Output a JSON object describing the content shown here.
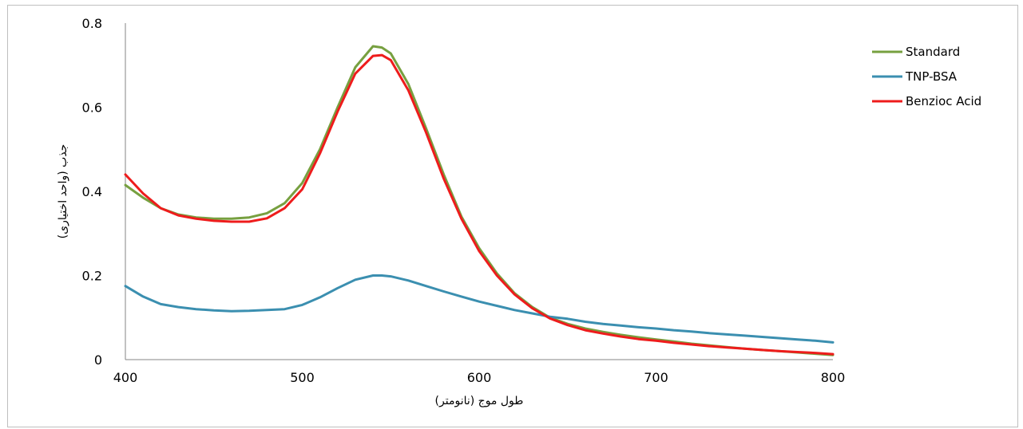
{
  "chart_data": {
    "type": "line",
    "title": "",
    "xlabel": "طول موج (نانومتر)",
    "ylabel": "جذب (واحد اختیاری)",
    "xlim": [
      400,
      800
    ],
    "ylim": [
      0,
      0.8
    ],
    "xticks": [
      400,
      500,
      600,
      700,
      800
    ],
    "yticks": [
      0,
      0.2,
      0.4,
      0.6,
      0.8
    ],
    "xtick_labels": [
      "400",
      "500",
      "600",
      "700",
      "800"
    ],
    "ytick_labels": [
      "0",
      "0.2",
      "0.4",
      "0.6",
      "0.8"
    ],
    "grid": false,
    "legend_position": "top-right",
    "x": [
      400,
      410,
      420,
      430,
      440,
      450,
      460,
      470,
      480,
      490,
      500,
      510,
      520,
      530,
      540,
      545,
      550,
      560,
      570,
      580,
      590,
      600,
      610,
      620,
      630,
      640,
      650,
      660,
      670,
      680,
      690,
      700,
      710,
      720,
      730,
      740,
      750,
      760,
      770,
      780,
      790,
      800
    ],
    "series": [
      {
        "name": "Standard",
        "color": "#77a040",
        "values": [
          0.415,
          0.385,
          0.36,
          0.345,
          0.338,
          0.335,
          0.335,
          0.338,
          0.348,
          0.372,
          0.42,
          0.5,
          0.6,
          0.695,
          0.745,
          0.742,
          0.728,
          0.655,
          0.55,
          0.44,
          0.34,
          0.265,
          0.205,
          0.158,
          0.125,
          0.1,
          0.085,
          0.074,
          0.066,
          0.059,
          0.053,
          0.048,
          0.043,
          0.038,
          0.034,
          0.03,
          0.026,
          0.023,
          0.02,
          0.017,
          0.014,
          0.011
        ]
      },
      {
        "name": "TNP-BSA",
        "color": "#3b8fb0",
        "values": [
          0.175,
          0.15,
          0.132,
          0.125,
          0.12,
          0.117,
          0.115,
          0.116,
          0.118,
          0.12,
          0.13,
          0.148,
          0.17,
          0.19,
          0.2,
          0.2,
          0.198,
          0.188,
          0.175,
          0.162,
          0.15,
          0.138,
          0.128,
          0.118,
          0.11,
          0.102,
          0.097,
          0.09,
          0.085,
          0.081,
          0.077,
          0.074,
          0.07,
          0.067,
          0.063,
          0.06,
          0.057,
          0.054,
          0.051,
          0.048,
          0.045,
          0.041
        ]
      },
      {
        "name": "Benzioc Acid",
        "color": "#ee1c1c",
        "values": [
          0.44,
          0.395,
          0.36,
          0.343,
          0.335,
          0.33,
          0.328,
          0.328,
          0.336,
          0.36,
          0.405,
          0.49,
          0.59,
          0.68,
          0.722,
          0.724,
          0.712,
          0.64,
          0.54,
          0.43,
          0.335,
          0.258,
          0.2,
          0.155,
          0.122,
          0.098,
          0.082,
          0.07,
          0.062,
          0.055,
          0.049,
          0.045,
          0.04,
          0.036,
          0.032,
          0.029,
          0.026,
          0.023,
          0.02,
          0.018,
          0.016,
          0.013
        ]
      }
    ]
  }
}
